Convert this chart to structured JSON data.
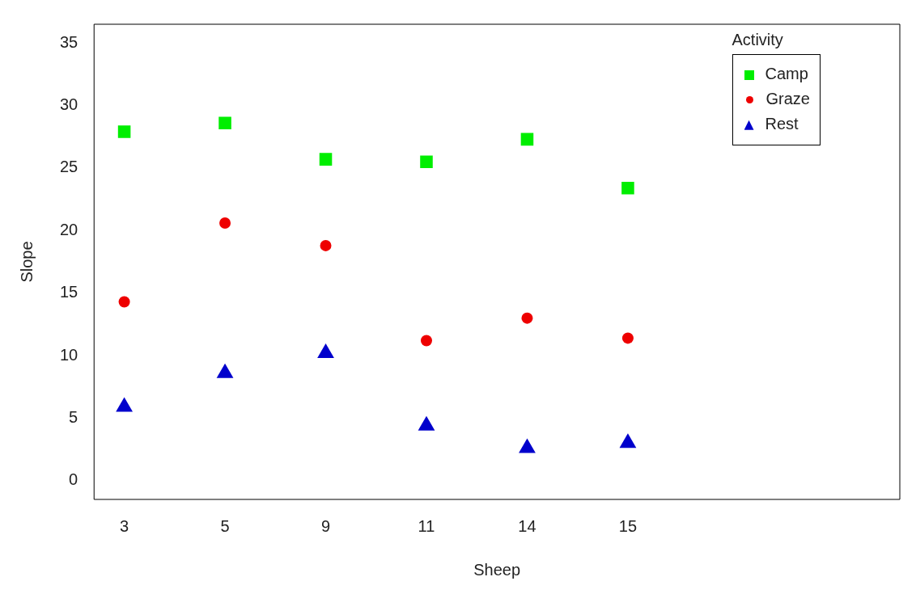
{
  "chart_data": {
    "type": "scatter",
    "xlabel": "Sheep",
    "ylabel": "Slope",
    "legend_title": "Activity",
    "legend": "top right",
    "grid": false,
    "categories": [
      "3",
      "5",
      "9",
      "11",
      "14",
      "15"
    ],
    "ylim": [
      -1.5,
      36.5
    ],
    "yticks": [
      0,
      5,
      10,
      15,
      20,
      25,
      30,
      35
    ],
    "series": [
      {
        "name": "Camp",
        "color": "#00ee00",
        "marker": "square",
        "values": [
          27.9,
          28.6,
          25.7,
          25.5,
          27.3,
          23.4
        ]
      },
      {
        "name": "Graze",
        "color": "#ee0000",
        "marker": "circle",
        "values": [
          14.3,
          20.6,
          18.8,
          11.2,
          13.0,
          11.4
        ]
      },
      {
        "name": "Rest",
        "color": "#0000cc",
        "marker": "triangle",
        "values": [
          5.9,
          8.6,
          10.2,
          4.4,
          2.6,
          3.0
        ]
      }
    ]
  }
}
